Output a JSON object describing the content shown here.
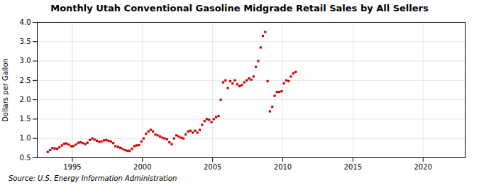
{
  "chart_data": {
    "type": "scatter",
    "title": "Monthly Utah Conventional Gasoline Midgrade Retail Sales by All Sellers",
    "ylabel": "Dollars per Gallon",
    "source": "Source: U.S. Energy Information Administration",
    "color": "#CC0000",
    "marker": "square",
    "grid": true,
    "xlim": [
      1992.5,
      2023.0
    ],
    "ylim": [
      0.5,
      4.0
    ],
    "xticks": [
      1995,
      2000,
      2005,
      2010,
      2015,
      2020
    ],
    "yticks": [
      0.5,
      {
        "value": 1.0,
        "label": "1.0"
      },
      1.5,
      {
        "value": 2.0,
        "label": "2.0"
      },
      2.5,
      {
        "value": 3.0,
        "label": "3.0"
      },
      3.5,
      {
        "value": 4.0,
        "label": "4.0"
      }
    ],
    "x": [
      1993.25,
      1993.42,
      1993.58,
      1993.75,
      1993.92,
      1994.08,
      1994.25,
      1994.42,
      1994.58,
      1994.75,
      1994.92,
      1995.08,
      1995.25,
      1995.42,
      1995.58,
      1995.75,
      1995.92,
      1996.08,
      1996.25,
      1996.42,
      1996.58,
      1996.75,
      1996.92,
      1997.08,
      1997.25,
      1997.42,
      1997.58,
      1997.75,
      1997.92,
      1998.08,
      1998.25,
      1998.42,
      1998.58,
      1998.75,
      1998.92,
      1999.08,
      1999.25,
      1999.42,
      1999.58,
      1999.75,
      1999.92,
      2000.08,
      2000.25,
      2000.42,
      2000.58,
      2000.75,
      2000.92,
      2001.08,
      2001.25,
      2001.42,
      2001.58,
      2001.75,
      2001.92,
      2002.08,
      2002.25,
      2002.42,
      2002.58,
      2002.75,
      2002.92,
      2003.08,
      2003.25,
      2003.42,
      2003.58,
      2003.75,
      2003.92,
      2004.08,
      2004.25,
      2004.42,
      2004.58,
      2004.75,
      2004.92,
      2005.08,
      2005.25,
      2005.42,
      2005.58,
      2005.75,
      2005.92,
      2006.08,
      2006.25,
      2006.42,
      2006.58,
      2006.75,
      2006.92,
      2007.08,
      2007.25,
      2007.42,
      2007.58,
      2007.75,
      2007.92,
      2008.08,
      2008.25,
      2008.42,
      2008.58,
      2008.75,
      2008.92,
      2009.08,
      2009.25,
      2009.42,
      2009.58,
      2009.75,
      2009.92,
      2010.08,
      2010.25,
      2010.42,
      2010.58,
      2010.75,
      2010.92
    ],
    "values": [
      0.65,
      0.7,
      0.75,
      0.74,
      0.73,
      0.77,
      0.82,
      0.86,
      0.87,
      0.84,
      0.8,
      0.8,
      0.84,
      0.89,
      0.9,
      0.88,
      0.85,
      0.89,
      0.96,
      1.0,
      0.97,
      0.94,
      0.91,
      0.92,
      0.95,
      0.96,
      0.94,
      0.92,
      0.88,
      0.8,
      0.78,
      0.76,
      0.73,
      0.7,
      0.68,
      0.68,
      0.73,
      0.8,
      0.82,
      0.83,
      0.92,
      1.0,
      1.12,
      1.18,
      1.22,
      1.18,
      1.1,
      1.08,
      1.05,
      1.02,
      1.0,
      0.98,
      0.9,
      0.85,
      1.0,
      1.08,
      1.05,
      1.02,
      1.0,
      1.1,
      1.18,
      1.2,
      1.15,
      1.2,
      1.15,
      1.22,
      1.35,
      1.45,
      1.5,
      1.48,
      1.42,
      1.5,
      1.55,
      1.58,
      2.0,
      2.45,
      2.5,
      2.3,
      2.48,
      2.42,
      2.5,
      2.4,
      2.35,
      2.38,
      2.45,
      2.5,
      2.55,
      2.52,
      2.6,
      2.85,
      3.0,
      3.35,
      3.65,
      3.75,
      2.48,
      1.7,
      1.82,
      2.1,
      2.2,
      2.2,
      2.22,
      2.42,
      2.5,
      2.48,
      2.6,
      2.68,
      2.72
    ]
  }
}
